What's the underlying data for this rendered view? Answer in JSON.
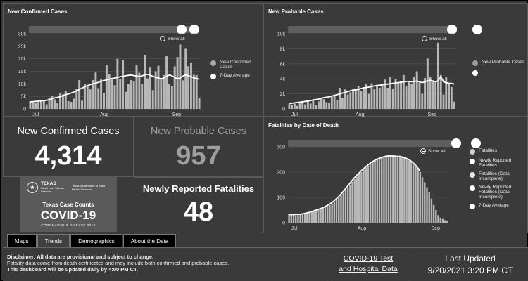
{
  "panels": {
    "confirmed": {
      "title": "New Confirmed Cases"
    },
    "probable": {
      "title": "New Probable Cases"
    },
    "fatalities": {
      "title": "Fatalities by Date of Death"
    }
  },
  "show_all": "Show all",
  "stats": {
    "confirmed_label": "New Confirmed Cases",
    "confirmed_value": "4,314",
    "probable_label": "New Probable Cases",
    "probable_value": "957",
    "fatalities_label": "Newly Reported Fatalities",
    "fatalities_value": "48"
  },
  "logo": {
    "agency1": "TEXAS",
    "agency1_sub": "Health and Human Services",
    "agency2": "Texas Department of State Health Services",
    "line1": "Texas Case Counts",
    "line2": "COVID-19",
    "line3": "CORONAVIRUS DISEASE 2019"
  },
  "tabs": [
    "Maps",
    "Trends",
    "Demographics",
    "About the Data"
  ],
  "active_tab": "Trends",
  "footer": {
    "disclaimer_bold": "Disclaimer: All data are provisional and subject to change.",
    "disclaimer_line2": "Fatality data come from death certificates and may include both confirmed and probable cases.",
    "disclaimer_line3": "This dashboard will be updated daily by 4:00 PM CT.",
    "link_line1": "COVID-19 Test",
    "link_line2": "and Hospital Data",
    "updated_label": "Last Updated",
    "updated_value": "9/20/2021 3:20 PM CT"
  },
  "colors": {
    "bar": "#b8b8b8",
    "line": "#ffffff",
    "panel": "#3a3a3a",
    "legend_probable": "#9a9a9a",
    "legend_confirmed": "#a8a8a8"
  },
  "chart_data": [
    {
      "type": "bar",
      "name": "new-confirmed",
      "ylim": [
        0,
        30000
      ],
      "yticks": [
        "0",
        "5k",
        "10k",
        "15k",
        "20k",
        "25k",
        "30k"
      ],
      "xticks": [
        "Jul",
        "Aug",
        "Sep"
      ],
      "series": [
        {
          "name": "New Confirmed Cases",
          "values": [
            3000,
            2600,
            2200,
            2800,
            3600,
            3200,
            1800,
            4500,
            5200,
            3800,
            2500,
            6200,
            5800,
            7200,
            3100,
            2800,
            4100,
            8000,
            11500,
            3300,
            10000,
            9200,
            7800,
            11500,
            14500,
            8300,
            12000,
            6200,
            17500,
            13800,
            12000,
            9500,
            20000,
            12000,
            19500,
            6800,
            10000,
            11500,
            11000,
            17500,
            14400,
            10000,
            21500,
            12200,
            16500,
            7500,
            15000,
            17200,
            12000,
            13500,
            21000,
            9800,
            9000,
            17000,
            20700,
            25700,
            11400,
            24000,
            17000,
            18500,
            13600,
            13500,
            4314
          ]
        },
        {
          "name": "7-Day Average",
          "values": [
            2800,
            2900,
            3000,
            3100,
            3200,
            3300,
            3400,
            3700,
            4000,
            4400,
            4600,
            4900,
            5300,
            5700,
            6000,
            6300,
            6700,
            7200,
            7800,
            8300,
            8800,
            9300,
            9700,
            10000,
            10300,
            10600,
            11000,
            11300,
            11600,
            11900,
            12100,
            12300,
            12600,
            12800,
            13000,
            13200,
            13400,
            13500,
            13300,
            13100,
            12900,
            13200,
            13500,
            13800,
            13400,
            13000,
            12600,
            12300,
            12000,
            12400,
            13000,
            13500,
            13200,
            12600,
            12000,
            12400,
            13100,
            13600,
            13200,
            12800,
            12400,
            12100,
            11800
          ]
        }
      ]
    },
    {
      "type": "bar",
      "name": "new-probable",
      "ylim": [
        0,
        10000
      ],
      "yticks": [
        "0",
        "2k",
        "4k",
        "6k",
        "8k",
        "10k"
      ],
      "xticks": [
        "Jul",
        "Aug",
        "Sep"
      ],
      "series": [
        {
          "name": "New Probable Cases",
          "values": [
            600,
            500,
            700,
            400,
            800,
            900,
            600,
            1100,
            700,
            1200,
            500,
            1000,
            1400,
            1300,
            900,
            800,
            1600,
            1700,
            1200,
            2800,
            1500,
            2600,
            1900,
            2200,
            2600,
            2700,
            3000,
            2400,
            2900,
            3300,
            2000,
            3400,
            2700,
            3200,
            2800,
            3000,
            3900,
            2800,
            4300,
            2700,
            4000,
            3500,
            3700,
            4500,
            3000,
            3700,
            3300,
            4300,
            5000,
            3500,
            2000,
            4100,
            6700,
            4200,
            3800,
            3500,
            8800,
            4500,
            1900,
            4200,
            3500,
            2900,
            957
          ]
        },
        {
          "name": "7-Day Average",
          "values": [
            700,
            750,
            800,
            850,
            900,
            950,
            1000,
            1050,
            1100,
            1200,
            1250,
            1300,
            1400,
            1500,
            1550,
            1600,
            1700,
            1800,
            1900,
            2000,
            2100,
            2200,
            2300,
            2400,
            2500,
            2550,
            2600,
            2700,
            2800,
            2850,
            2900,
            3000,
            3050,
            3100,
            3150,
            3200,
            3250,
            3300,
            3350,
            3400,
            3450,
            3500,
            3550,
            3600,
            3650,
            3650,
            3600,
            3650,
            3700,
            3600,
            3500,
            3600,
            3750,
            3800,
            3700,
            3600,
            3750,
            4300,
            3600,
            3500,
            3400,
            3400,
            3300
          ]
        }
      ]
    },
    {
      "type": "bar",
      "name": "fatalities-by-date",
      "ylim": [
        0,
        300
      ],
      "yticks": [
        "0",
        "100",
        "200",
        "300"
      ],
      "xticks": [
        "Jul",
        "Aug",
        "Sep"
      ],
      "series": [
        {
          "name": "Fatalities",
          "values": [
            35,
            30,
            32,
            28,
            30,
            34,
            36,
            38,
            40,
            42,
            45,
            48,
            50,
            52,
            55,
            58,
            62,
            66,
            70,
            76,
            82,
            90,
            98,
            108,
            118,
            128,
            138,
            150,
            162,
            172,
            182,
            192,
            200,
            210,
            218,
            226,
            232,
            240,
            246,
            250,
            254,
            258,
            260,
            262,
            265,
            262,
            266,
            260,
            258,
            265,
            262,
            255,
            250,
            245,
            240,
            230,
            225,
            215,
            200,
            180,
            160,
            140,
            120,
            95,
            70,
            50,
            30,
            20,
            15,
            10,
            8
          ]
        },
        {
          "name": "Fatalities (Data Incomplete)",
          "values": [
            0,
            0,
            0,
            0,
            0,
            0,
            0,
            0,
            0,
            0,
            0,
            0,
            0,
            0,
            0,
            0,
            0,
            0,
            0,
            0,
            0,
            0,
            0,
            0,
            0,
            0,
            0,
            0,
            0,
            0,
            0,
            0,
            0,
            0,
            0,
            0,
            0,
            0,
            0,
            0,
            0,
            0,
            0,
            0,
            0,
            0,
            0,
            0,
            0,
            0,
            0,
            0,
            0,
            0,
            0,
            0,
            0,
            0,
            0,
            0,
            0,
            0,
            0,
            0,
            0,
            0,
            0,
            0,
            0,
            0,
            0
          ]
        },
        {
          "name": "7-Day Average",
          "values": [
            32,
            32,
            32,
            32,
            33,
            34,
            35,
            37,
            39,
            41,
            44,
            47,
            50,
            53,
            56,
            60,
            64,
            69,
            74,
            80,
            87,
            95,
            104,
            114,
            124,
            135,
            146,
            157,
            168,
            178,
            188,
            197,
            206,
            214,
            222,
            229,
            236,
            242,
            247,
            251,
            255,
            258,
            261,
            263,
            264,
            264,
            264,
            263,
            262,
            262,
            260,
            257,
            254,
            249,
            243,
            236,
            227,
            216,
            204
          ]
        }
      ],
      "legend": [
        "Fatalities",
        "Newly Reported Fatalities",
        "Fatalities (Data Incomplete)",
        "Newly Reported Fatalities (Data Incomplete)",
        "7-Day Average"
      ]
    }
  ]
}
